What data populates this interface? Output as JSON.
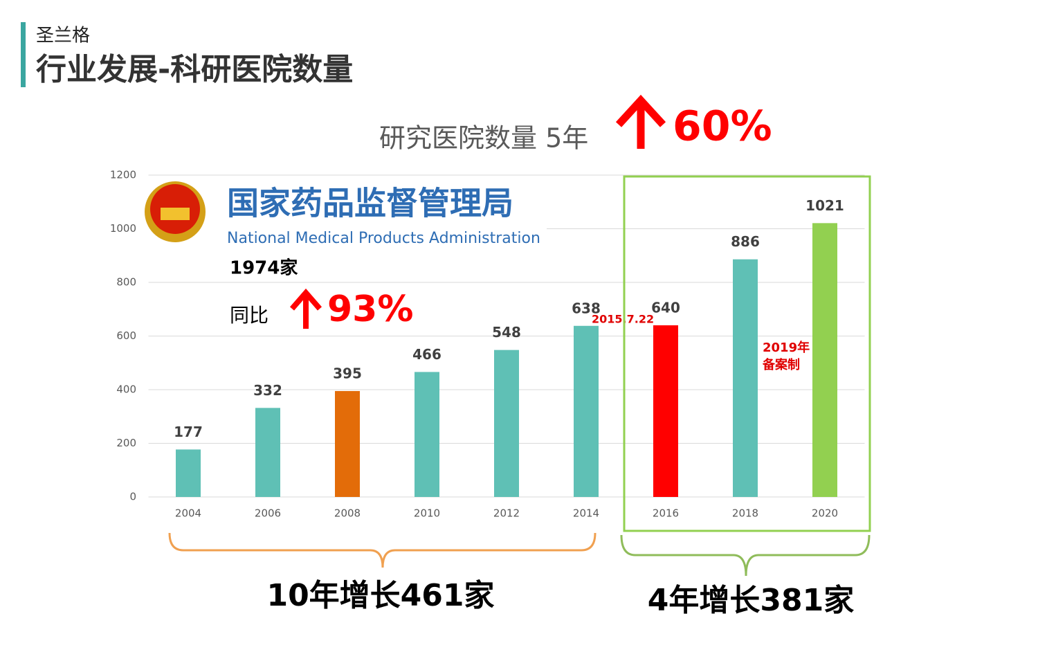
{
  "header": {
    "brand": "圣兰格",
    "title": "行业发展-科研医院数量"
  },
  "headline": {
    "text": "研究医院数量 5年",
    "change": "60%"
  },
  "logo": {
    "name_cn": "国家药品监督管理局",
    "name_en": "National Medical Products Administration"
  },
  "callout": {
    "total": "1974家",
    "label": "同比",
    "change": "93%"
  },
  "chart_data": {
    "type": "bar",
    "categories": [
      "2004",
      "2006",
      "2008",
      "2010",
      "2012",
      "2014",
      "2016",
      "2018",
      "2020"
    ],
    "values": [
      177,
      332,
      395,
      466,
      548,
      638,
      640,
      886,
      1021
    ],
    "colors": [
      "#5fc0b5",
      "#5fc0b5",
      "#e36c09",
      "#5fc0b5",
      "#5fc0b5",
      "#5fc0b5",
      "#ff0000",
      "#5fc0b5",
      "#92d050"
    ],
    "ylim": [
      0,
      1200
    ],
    "yticks": [
      0,
      200,
      400,
      600,
      800,
      1000,
      1200
    ],
    "grid": true,
    "annotations": [
      "2015.7.22",
      "2019年",
      "备案制"
    ]
  },
  "summary": {
    "first": "10年增长461家",
    "second": "4年增长381家"
  }
}
